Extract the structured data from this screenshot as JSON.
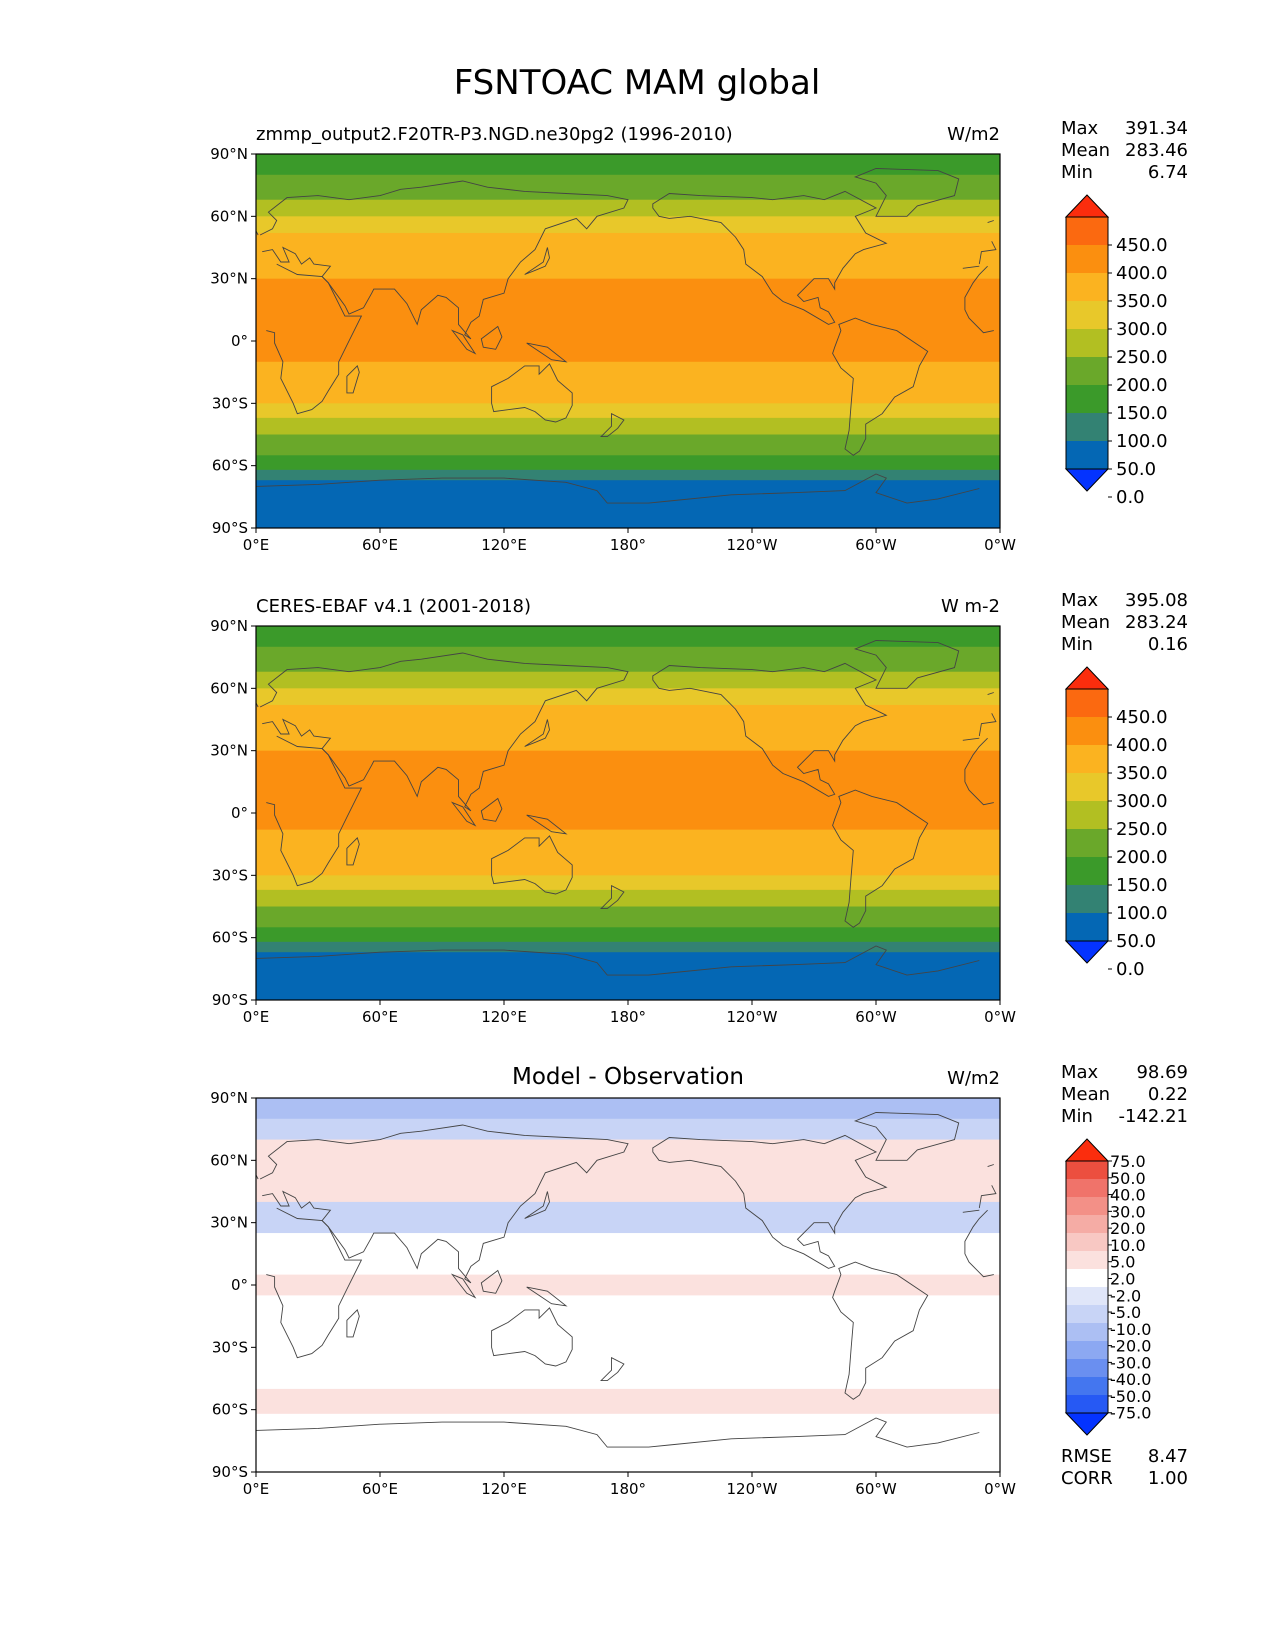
{
  "title": "FSNTOAC MAM global",
  "chart_data": [
    {
      "type": "heatmap",
      "title_left": "zmmp_output2.F20TR-P3.NGD.ne30pg2 (1996-2010)",
      "units": "W/m2",
      "stats": [
        {
          "label": "Max",
          "value": "391.34"
        },
        {
          "label": "Mean",
          "value": "283.46"
        },
        {
          "label": "Min",
          "value": "6.74"
        }
      ],
      "xticks": [
        "0°E",
        "60°E",
        "120°E",
        "180°",
        "120°W",
        "60°W",
        "0°W"
      ],
      "yticks": [
        "90°N",
        "60°N",
        "30°N",
        "0°",
        "30°S",
        "60°S",
        "90°S"
      ],
      "xlim": [
        0,
        360
      ],
      "ylim": [
        -90,
        90
      ],
      "colorbar_ticks": [
        "450.0",
        "400.0",
        "350.0",
        "300.0",
        "250.0",
        "200.0",
        "150.0",
        "100.0",
        "50.0",
        "0.0"
      ],
      "bands": [
        {
          "lat": [
            90,
            80
          ],
          "value": 100
        },
        {
          "lat": [
            80,
            68
          ],
          "value": 150
        },
        {
          "lat": [
            68,
            60
          ],
          "value": 200
        },
        {
          "lat": [
            60,
            52
          ],
          "value": 250
        },
        {
          "lat": [
            52,
            40
          ],
          "value": 300
        },
        {
          "lat": [
            40,
            30
          ],
          "value": 325
        },
        {
          "lat": [
            30,
            -10
          ],
          "value": 370
        },
        {
          "lat": [
            -10,
            -20
          ],
          "value": 325
        },
        {
          "lat": [
            -20,
            -30
          ],
          "value": 300
        },
        {
          "lat": [
            -30,
            -37
          ],
          "value": 250
        },
        {
          "lat": [
            -37,
            -45
          ],
          "value": 200
        },
        {
          "lat": [
            -45,
            -55
          ],
          "value": 150
        },
        {
          "lat": [
            -55,
            -62
          ],
          "value": 100
        },
        {
          "lat": [
            -62,
            -67
          ],
          "value": 70
        },
        {
          "lat": [
            -67,
            -90
          ],
          "value": 40
        }
      ]
    },
    {
      "type": "heatmap",
      "title_left": "CERES-EBAF v4.1 (2001-2018)",
      "units": "W m-2",
      "stats": [
        {
          "label": "Max",
          "value": "395.08"
        },
        {
          "label": "Mean",
          "value": "283.24"
        },
        {
          "label": "Min",
          "value": "0.16"
        }
      ],
      "xticks": [
        "0°E",
        "60°E",
        "120°E",
        "180°",
        "120°W",
        "60°W",
        "0°W"
      ],
      "yticks": [
        "90°N",
        "60°N",
        "30°N",
        "0°",
        "30°S",
        "60°S",
        "90°S"
      ],
      "xlim": [
        0,
        360
      ],
      "ylim": [
        -90,
        90
      ],
      "colorbar_ticks": [
        "450.0",
        "400.0",
        "350.0",
        "300.0",
        "250.0",
        "200.0",
        "150.0",
        "100.0",
        "50.0",
        "0.0"
      ],
      "bands": [
        {
          "lat": [
            90,
            80
          ],
          "value": 100
        },
        {
          "lat": [
            80,
            68
          ],
          "value": 150
        },
        {
          "lat": [
            68,
            60
          ],
          "value": 200
        },
        {
          "lat": [
            60,
            52
          ],
          "value": 250
        },
        {
          "lat": [
            52,
            40
          ],
          "value": 300
        },
        {
          "lat": [
            40,
            30
          ],
          "value": 325
        },
        {
          "lat": [
            30,
            -8
          ],
          "value": 370
        },
        {
          "lat": [
            -8,
            -20
          ],
          "value": 325
        },
        {
          "lat": [
            -20,
            -30
          ],
          "value": 300
        },
        {
          "lat": [
            -30,
            -37
          ],
          "value": 250
        },
        {
          "lat": [
            -37,
            -45
          ],
          "value": 200
        },
        {
          "lat": [
            -45,
            -55
          ],
          "value": 150
        },
        {
          "lat": [
            -55,
            -62
          ],
          "value": 100
        },
        {
          "lat": [
            -62,
            -67
          ],
          "value": 70
        },
        {
          "lat": [
            -67,
            -90
          ],
          "value": 40
        }
      ]
    },
    {
      "type": "heatmap",
      "title_center": "Model - Observation",
      "units": "W/m2",
      "stats": [
        {
          "label": "Max",
          "value": "98.69"
        },
        {
          "label": "Mean",
          "value": "0.22"
        },
        {
          "label": "Min",
          "value": "-142.21"
        }
      ],
      "extra_stats": [
        {
          "label": "RMSE",
          "value": "8.47"
        },
        {
          "label": "CORR",
          "value": "1.00"
        }
      ],
      "xticks": [
        "0°E",
        "60°E",
        "120°E",
        "180°",
        "120°W",
        "60°W",
        "0°W"
      ],
      "yticks": [
        "90°N",
        "60°N",
        "30°N",
        "0°",
        "30°S",
        "60°S",
        "90°S"
      ],
      "xlim": [
        0,
        360
      ],
      "ylim": [
        -90,
        90
      ],
      "colorbar_ticks": [
        "75.0",
        "50.0",
        "40.0",
        "30.0",
        "20.0",
        "10.0",
        "5.0",
        "2.0",
        "-2.0",
        "-5.0",
        "-10.0",
        "-20.0",
        "-30.0",
        "-40.0",
        "-50.0",
        "-75.0"
      ],
      "bands": [
        {
          "lat": [
            90,
            80
          ],
          "value": -12
        },
        {
          "lat": [
            80,
            70
          ],
          "value": -6
        },
        {
          "lat": [
            70,
            40
          ],
          "value": 4
        },
        {
          "lat": [
            40,
            25
          ],
          "value": -7
        },
        {
          "lat": [
            25,
            5
          ],
          "value": 0
        },
        {
          "lat": [
            5,
            -5
          ],
          "value": 3
        },
        {
          "lat": [
            -5,
            -50
          ],
          "value": 1
        },
        {
          "lat": [
            -50,
            -62
          ],
          "value": 3
        },
        {
          "lat": [
            -62,
            -90
          ],
          "value": 0
        }
      ]
    }
  ],
  "colors": {
    "abs_levels": [
      "#0433ff",
      "#0467b4",
      "#338273",
      "#3b9a2a",
      "#6aa82a",
      "#b2bf22",
      "#e8c82a",
      "#fbb320",
      "#fb8f0f",
      "#fb6910",
      "#fb2d0d"
    ],
    "diff_levels": [
      "#0433ff",
      "#2659f4",
      "#4476ef",
      "#6a8ff0",
      "#8ca8f2",
      "#acbff3",
      "#c8d4f6",
      "#e0e6f9",
      "#ffffff",
      "#fbe1de",
      "#f8c8c3",
      "#f5aca5",
      "#f39087",
      "#f0736a",
      "#ec4f3f",
      "#fb2d0d"
    ],
    "land": "#444444"
  }
}
